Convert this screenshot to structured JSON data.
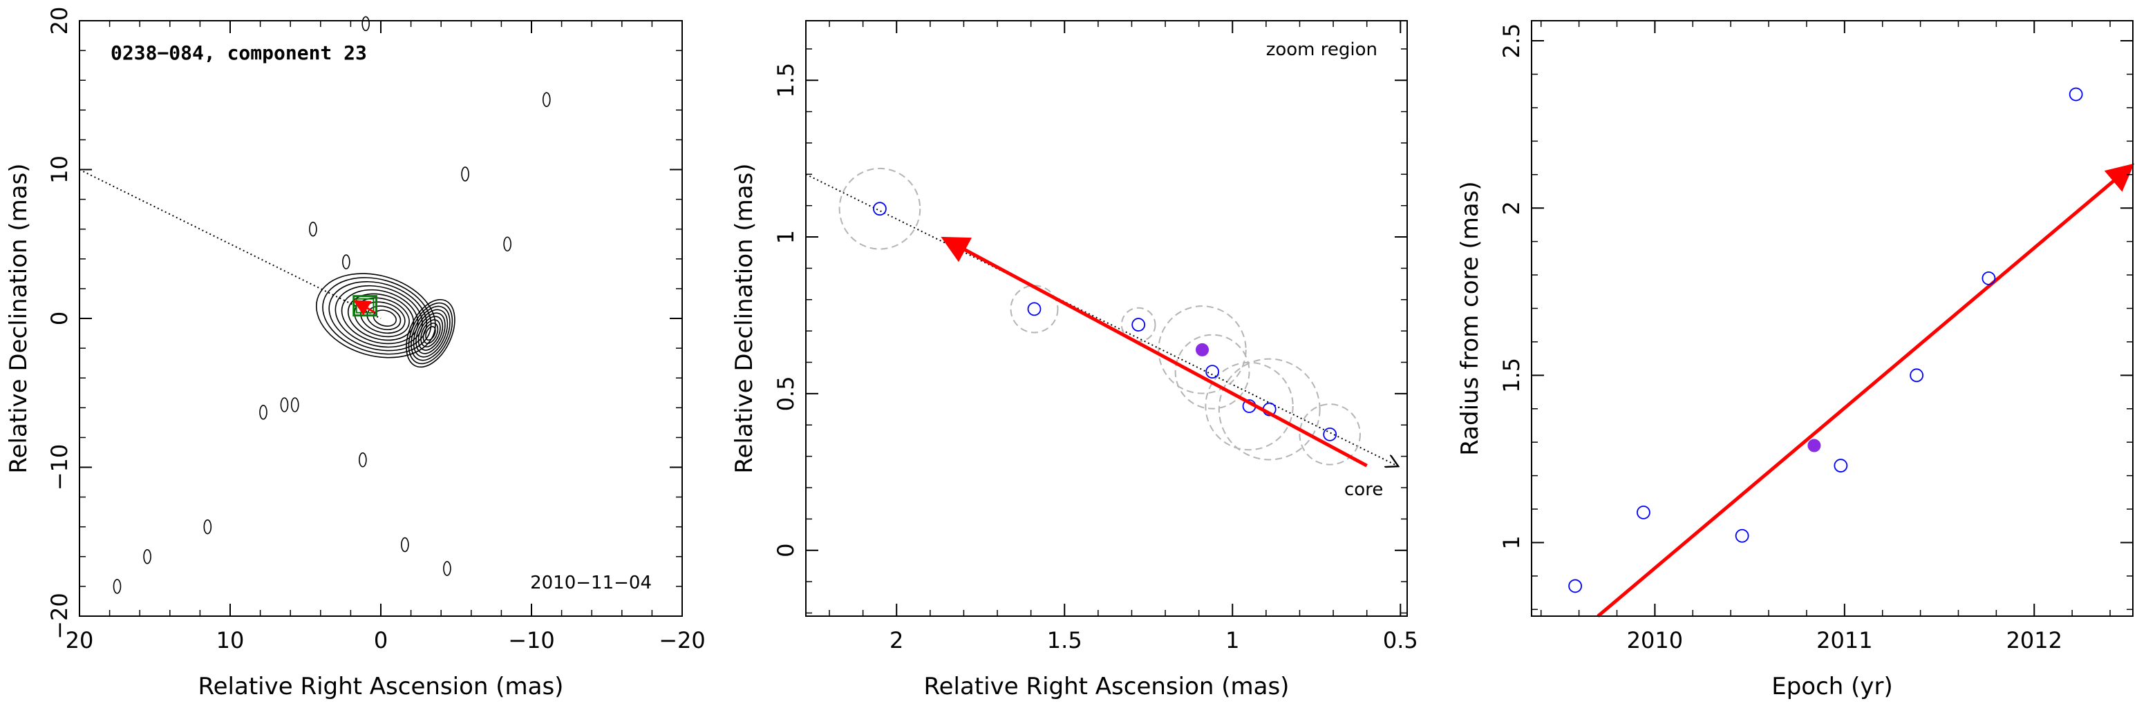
{
  "colors": {
    "fit_arrow": "#ff0000",
    "open_points": "#0000ff",
    "filled_point": "#8a2be2",
    "circles": "#b4b4b4",
    "contours": "#000000",
    "box": "#008000"
  },
  "chart_data": [
    {
      "type": "contour",
      "title": "0238−084, component 23",
      "date_label": "2010−11−04",
      "xlabel": "Relative Right Ascension (mas)",
      "ylabel": "Relative Declination (mas)",
      "xlim": [
        20,
        -20
      ],
      "ylim": [
        -20,
        20
      ],
      "xticks": [
        20,
        10,
        0,
        -10,
        -20
      ],
      "yticks": [
        -20,
        -10,
        0,
        10,
        20
      ],
      "xtick_labels": [
        "20",
        "10",
        "0",
        "−10",
        "−20"
      ],
      "ytick_labels": [
        "−20",
        "−10",
        "0",
        "10",
        "20"
      ],
      "direction_line": {
        "x": [
          20,
          0
        ],
        "y": [
          10,
          0
        ],
        "style": "dotted"
      },
      "core_contours": {
        "x": 0,
        "y": 0
      },
      "jet_contours": {
        "x": -3.3,
        "y": -1.0
      },
      "component_box": {
        "x": [
          0.3,
          1.8
        ],
        "y": [
          0.2,
          1.5
        ]
      },
      "islands": [
        {
          "x": 17.5,
          "y": -18
        },
        {
          "x": 15.5,
          "y": -16
        },
        {
          "x": 11.5,
          "y": -14
        },
        {
          "x": 7.8,
          "y": -6.3
        },
        {
          "x": 6.4,
          "y": -5.8
        },
        {
          "x": 5.7,
          "y": -5.8
        },
        {
          "x": 4.5,
          "y": 6
        },
        {
          "x": 2.3,
          "y": 3.8
        },
        {
          "x": 1.2,
          "y": -9.5
        },
        {
          "x": 1.0,
          "y": 19.8
        },
        {
          "x": -1.6,
          "y": -15.2
        },
        {
          "x": -4.4,
          "y": -16.8
        },
        {
          "x": -5.6,
          "y": 9.7
        },
        {
          "x": -8.4,
          "y": 5
        },
        {
          "x": -11,
          "y": 14.7
        }
      ]
    },
    {
      "type": "scatter",
      "annotation": "zoom region",
      "core_label": "core",
      "xlabel": "Relative Right Ascension (mas)",
      "ylabel": "Relative Declination (mas)",
      "xlim": [
        2.27,
        0.48
      ],
      "ylim": [
        -0.21,
        1.69
      ],
      "xticks": [
        2,
        1.5,
        1,
        0.5
      ],
      "yticks": [
        0,
        0.5,
        1,
        1.5
      ],
      "xtick_labels": [
        "2",
        "1.5",
        "1",
        "0.5"
      ],
      "ytick_labels": [
        "0",
        "0.5",
        "1",
        "1.5"
      ],
      "points": [
        {
          "x": 2.05,
          "y": 1.09,
          "err": 0.12,
          "filled": false
        },
        {
          "x": 1.59,
          "y": 0.77,
          "err": 0.07,
          "filled": false
        },
        {
          "x": 1.28,
          "y": 0.72,
          "err": 0.05,
          "filled": false
        },
        {
          "x": 1.09,
          "y": 0.64,
          "err": 0.13,
          "filled": true
        },
        {
          "x": 1.06,
          "y": 0.57,
          "err": 0.11,
          "filled": false
        },
        {
          "x": 0.95,
          "y": 0.46,
          "err": 0.13,
          "filled": false
        },
        {
          "x": 0.89,
          "y": 0.45,
          "err": 0.15,
          "filled": false
        },
        {
          "x": 0.71,
          "y": 0.37,
          "err": 0.09,
          "filled": false
        }
      ],
      "fit_arrow": {
        "x": [
          0.6,
          1.85
        ],
        "y": [
          0.27,
          0.99
        ]
      },
      "direction_line": {
        "x": [
          2.27,
          0.51
        ],
        "y": [
          1.2,
          0.27
        ]
      }
    },
    {
      "type": "scatter",
      "xlabel": "Epoch (yr)",
      "ylabel": "Radius from core (mas)",
      "xlim": [
        2009.35,
        2012.52
      ],
      "ylim": [
        0.78,
        2.56
      ],
      "xticks": [
        2010,
        2011,
        2012
      ],
      "yticks": [
        1,
        1.5,
        2,
        2.5
      ],
      "xtick_labels": [
        "2010",
        "2011",
        "2012"
      ],
      "ytick_labels": [
        "1",
        "1.5",
        "2",
        "2.5"
      ],
      "points": [
        {
          "x": 2009.58,
          "y": 0.87,
          "filled": false
        },
        {
          "x": 2009.94,
          "y": 1.09,
          "filled": false
        },
        {
          "x": 2010.46,
          "y": 1.02,
          "filled": false
        },
        {
          "x": 2010.84,
          "y": 1.29,
          "filled": true
        },
        {
          "x": 2010.98,
          "y": 1.23,
          "filled": false
        },
        {
          "x": 2011.38,
          "y": 1.5,
          "filled": false
        },
        {
          "x": 2011.76,
          "y": 1.79,
          "filled": false
        },
        {
          "x": 2012.22,
          "y": 2.34,
          "filled": false
        }
      ],
      "fit_arrow": {
        "x": [
          2009.7,
          2012.5
        ],
        "y": [
          0.78,
          2.12
        ]
      }
    }
  ]
}
